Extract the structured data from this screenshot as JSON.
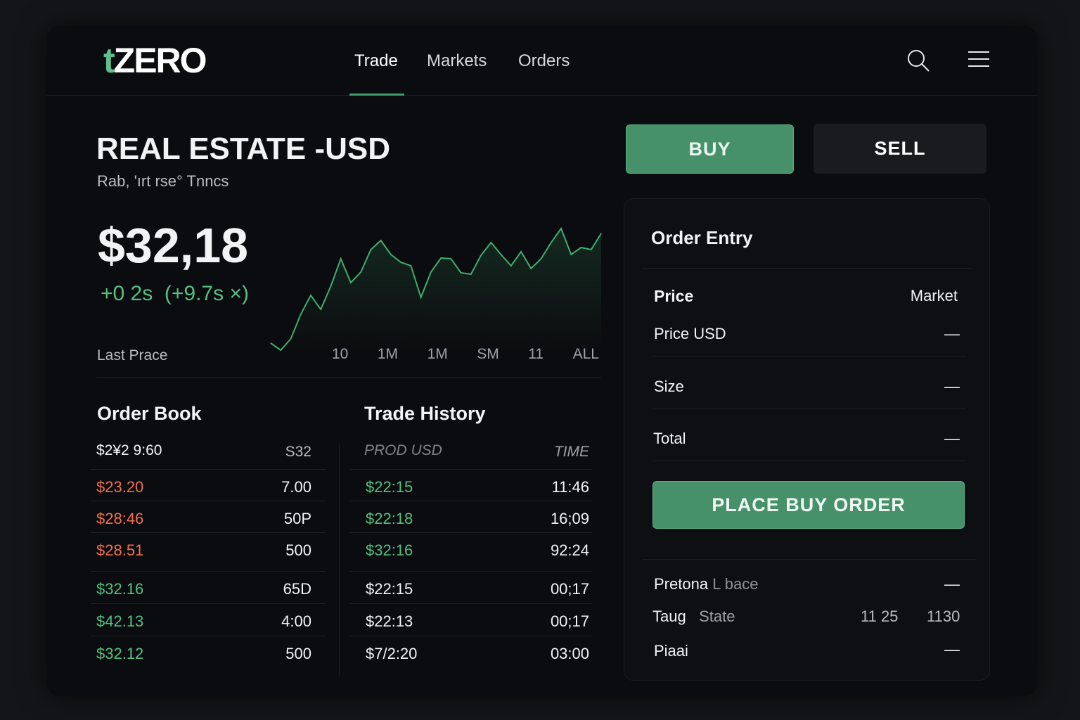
{
  "header": {
    "logo_prefix": "t",
    "logo_main": "ZERO",
    "nav": [
      "Trade",
      "Markets",
      "Orders"
    ],
    "active_nav": "Trade",
    "icons": [
      "search-icon",
      "menu-icon"
    ]
  },
  "asset": {
    "title": "REAL ESTATE -USD",
    "subtitle": "Rab, 'ırt rse° Tnncs",
    "price": "$32,18",
    "change": "+0 2s",
    "change_pct": "(+9.7s ×)",
    "last_price_label": "Last Prace"
  },
  "chart_data": {
    "type": "line",
    "values": [
      12,
      2,
      18,
      53,
      80,
      60,
      93,
      132,
      98,
      113,
      145,
      158,
      138,
      127,
      122,
      77,
      113,
      133,
      132,
      112,
      110,
      137,
      155,
      138,
      122,
      142,
      118,
      132,
      155,
      175,
      138,
      148,
      145,
      168
    ],
    "color": "#3fae6e",
    "ranges": [
      "10",
      "1M",
      "1M",
      "SM",
      "11",
      "ALL"
    ]
  },
  "order_book": {
    "title": "Order Book",
    "header": [
      "$2¥2 9:60",
      "S32"
    ],
    "rows": [
      {
        "price": "$23.20",
        "size": "7.00",
        "side": "ask"
      },
      {
        "price": "$28:46",
        "size": "50P",
        "side": "ask"
      },
      {
        "price": "$28.51",
        "size": "500",
        "side": "ask"
      },
      {
        "price": "$32.16",
        "size": "65D",
        "side": "bid"
      },
      {
        "price": "$42.13",
        "size": "4:00",
        "side": "bid"
      },
      {
        "price": "$32.12",
        "size": "500",
        "side": "bid"
      }
    ]
  },
  "trade_history": {
    "title": "Trade History",
    "header": [
      "PROD USD",
      "TIME"
    ],
    "rows": [
      {
        "price": "$22:15",
        "time": "11:46",
        "green": true
      },
      {
        "price": "$22:18",
        "time": "16;09",
        "green": true
      },
      {
        "price": "$32:16",
        "time": "92:24",
        "green": true
      },
      {
        "price": "$22:15",
        "time": "00;17",
        "green": false
      },
      {
        "price": "$22:13",
        "time": "00;17",
        "green": false
      },
      {
        "price": "$7/2:20",
        "time": "03:00",
        "green": false
      }
    ]
  },
  "actions": {
    "buy": "BUY",
    "sell": "SELL"
  },
  "order_entry": {
    "title": "Order Entry",
    "price_label": "Price",
    "price_type": "Market",
    "fields": [
      {
        "label": "Price USD",
        "value": "—"
      },
      {
        "label": "Size",
        "value": "—"
      },
      {
        "label": "Total",
        "value": "—"
      }
    ],
    "submit": "PLACE BUY ORDER",
    "footer": {
      "row1_label": "Pretona",
      "row1_sub": "L bace",
      "row1_value": "—",
      "row2_label": "Taug",
      "row2_sub": "State",
      "row2_v1": "11 25",
      "row2_v2": "1130",
      "row3_label": "Piaai",
      "row3_value": "—"
    }
  },
  "colors": {
    "accent": "#46916a",
    "ask": "#f0714f",
    "bid": "#55c082",
    "bg": "#0b0c0f"
  }
}
